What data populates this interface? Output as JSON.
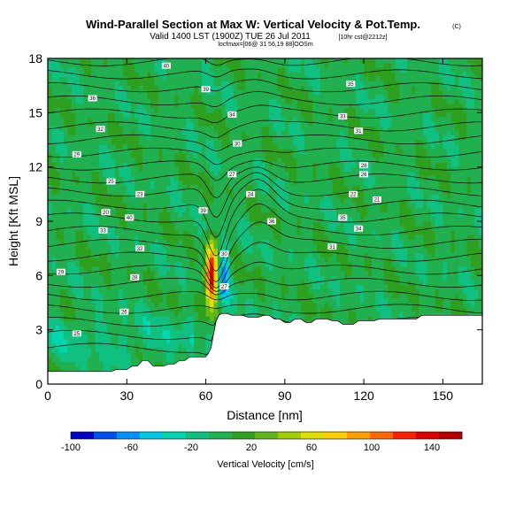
{
  "chart_data": {
    "type": "heatmap",
    "title": "Wind-Parallel Section at Max W: Vertical Velocity & Pot.Temp.",
    "title_mark": "(C)",
    "subtitle": "Valid 1400 LST (1900Z) TUE 26 Jul 2011",
    "subtitle_note": "[10hr cst@2212z]",
    "small_note": "locfmax=[06@ 31 56,19 88]OOSm",
    "xlabel": "Distance [nm]",
    "ylabel": "Height [Kft MSL]",
    "xlim": [
      0,
      165
    ],
    "ylim": [
      0,
      18
    ],
    "xticks": [
      0,
      30,
      60,
      90,
      120,
      150
    ],
    "yticks": [
      0,
      3,
      6,
      9,
      12,
      15,
      18
    ],
    "background_color": "#2ea020",
    "colorbar": {
      "label": "Vertical Velocity [cm/s]",
      "range": [
        -100,
        160
      ],
      "tick_values": [
        -100,
        -60,
        -20,
        20,
        60,
        100,
        140
      ],
      "colors": [
        "#0000c8",
        "#0050f0",
        "#0090ff",
        "#00c8e6",
        "#00d6b0",
        "#10c080",
        "#20b050",
        "#2ea020",
        "#60b818",
        "#a0d000",
        "#e0e000",
        "#ffd000",
        "#ffa000",
        "#ff6a00",
        "#ff2000",
        "#e00000",
        "#b40000"
      ]
    },
    "contour_levels": [
      300,
      302,
      304,
      306,
      308,
      310,
      312,
      314,
      316,
      318,
      320,
      322,
      324,
      326,
      328,
      330,
      332,
      334,
      336,
      338,
      340,
      342,
      344,
      346,
      348,
      350
    ],
    "contour_labels_visible": [
      "40",
      "39",
      "36",
      "35",
      "34",
      "33",
      "32",
      "31",
      "30",
      "29",
      "28",
      "27",
      "26",
      "25",
      "24",
      "23",
      "22",
      "21",
      "20"
    ],
    "terrain": {
      "x": [
        0,
        2,
        4,
        6,
        8,
        10,
        12,
        14,
        16,
        18,
        20,
        22,
        24,
        26,
        28,
        30,
        32,
        34,
        36,
        38,
        40,
        42,
        44,
        46,
        48,
        50,
        52,
        54,
        56,
        58,
        60,
        61,
        62,
        63,
        64,
        65,
        66,
        68,
        70,
        72,
        74,
        76,
        78,
        80,
        82,
        84,
        86,
        88,
        90,
        92,
        94,
        96,
        98,
        100,
        102,
        104,
        106,
        108,
        110,
        112,
        114,
        116,
        118,
        120,
        122,
        124,
        126,
        128,
        130,
        132,
        134,
        136,
        138,
        140,
        142,
        144,
        146,
        148,
        150,
        152,
        154,
        156,
        158,
        160,
        162,
        165
      ],
      "height": [
        0.7,
        0.7,
        0.7,
        0.7,
        0.7,
        0.7,
        0.7,
        0.7,
        0.7,
        0.7,
        0.7,
        0.7,
        0.7,
        0.8,
        0.8,
        0.8,
        1.0,
        1.0,
        1.3,
        1.3,
        1.0,
        1.0,
        1.0,
        1.1,
        1.1,
        1.3,
        1.3,
        1.5,
        1.5,
        1.5,
        1.5,
        1.7,
        2.0,
        2.8,
        3.5,
        3.8,
        3.9,
        3.9,
        3.8,
        3.8,
        3.8,
        3.7,
        3.7,
        3.7,
        3.8,
        3.8,
        3.6,
        3.6,
        3.4,
        3.4,
        3.6,
        3.6,
        3.4,
        3.4,
        3.6,
        3.6,
        3.6,
        3.5,
        3.5,
        3.3,
        3.3,
        3.3,
        3.5,
        3.5,
        3.5,
        3.5,
        3.6,
        3.6,
        3.6,
        3.6,
        3.6,
        3.6,
        3.6,
        3.6,
        3.8,
        3.8,
        3.8,
        3.8,
        3.8,
        3.8,
        3.8,
        3.8,
        3.8,
        3.8,
        3.8,
        3.8
      ]
    },
    "updraft_feature": {
      "x_center": 62,
      "height_range": [
        3.5,
        8.6
      ],
      "max_w": 150,
      "min_w": -60
    }
  }
}
